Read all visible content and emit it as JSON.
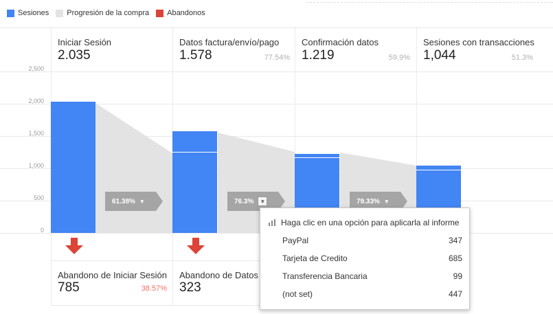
{
  "legend": [
    {
      "label": "Sesiones",
      "color": "#4285f4"
    },
    {
      "label": "Progresión de la compra",
      "color": "#e3e3e3"
    },
    {
      "label": "Abandonos",
      "color": "#db4437"
    }
  ],
  "y_ticks": [
    "2,500",
    "2,000",
    "1,500",
    "1,000",
    "500",
    "0"
  ],
  "steps": [
    {
      "label": "Iniciar Sesión",
      "value": "2.035",
      "pct": ""
    },
    {
      "label": "Datos factura/envío/pago",
      "value": "1.578",
      "pct": "77.54%"
    },
    {
      "label": "Confirmación datos",
      "value": "1.219",
      "pct": "59.9%"
    },
    {
      "label": "Sesiones con transacciones",
      "value": "1,044",
      "pct": "51.3%"
    }
  ],
  "conversions": [
    "61.38%",
    "76.3%",
    "79.33%"
  ],
  "abandons": [
    {
      "label": "Abandono de Iniciar Sesión",
      "value": "785",
      "pct": "38.57%"
    },
    {
      "label": "Abandono de Datos f",
      "value": "323"
    }
  ],
  "popup": {
    "header": "Haga clic en una opción para aplicarla al informe",
    "options": [
      {
        "label": "PayPal",
        "value": "347"
      },
      {
        "label": "Tarjeta de Credito",
        "value": "685"
      },
      {
        "label": "Transferencia Bancaria",
        "value": "99"
      },
      {
        "label": "(not set)",
        "value": "447"
      }
    ]
  },
  "chart_data": {
    "type": "bar",
    "categories": [
      "Iniciar Sesión",
      "Datos factura/envío/pago",
      "Confirmación datos",
      "Sesiones con transacciones"
    ],
    "series": [
      {
        "name": "Sesiones",
        "values": [
          2035,
          1578,
          1219,
          1044
        ]
      }
    ],
    "ylim": [
      0,
      2500
    ],
    "yticks": [
      0,
      500,
      1000,
      1500,
      2000,
      2500
    ],
    "grid": true,
    "legend_position": "top-left"
  }
}
